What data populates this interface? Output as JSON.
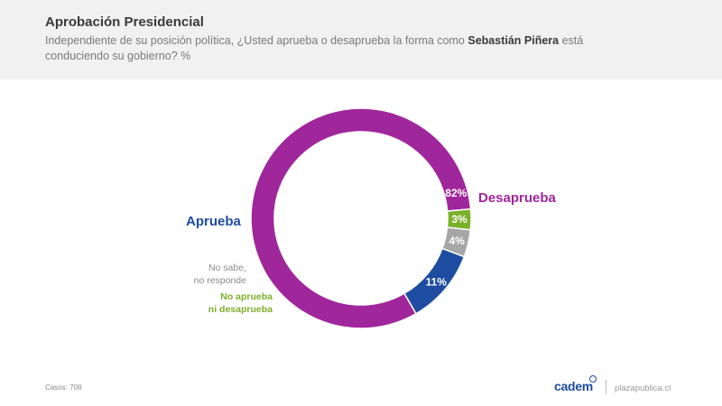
{
  "header": {
    "title": "Aprobación Presidencial",
    "subtitle_pre": "Independiente de su posición política, ¿Usted aprueba o desaprueba la forma como ",
    "subtitle_name": "Sebastián Piñera",
    "subtitle_post": " está conduciendo su gobierno? %"
  },
  "chart_data": {
    "type": "pie",
    "variant": "donut",
    "title": "Aprobación Presidencial",
    "categories": [
      "Desaprueba",
      "No aprueba ni desaprueba",
      "No sabe, no responde",
      "Aprueba"
    ],
    "values": [
      82,
      3,
      4,
      11
    ],
    "value_labels": [
      "82%",
      "3%",
      "4%",
      "11%"
    ],
    "colors": [
      "#a0269c",
      "#7bb02a",
      "#a6a6a6",
      "#1e4ca0"
    ],
    "labels": {
      "desaprueba": "Desaprueba",
      "aprueba": "Aprueba",
      "no_sabe_line1": "No sabe,",
      "no_sabe_line2": "no responde",
      "ni_line1": "No aprueba",
      "ni_line2": "ni desaprueba"
    }
  },
  "footer": {
    "casos": "Casos: 708",
    "logo": "cadem",
    "site": "plazapublica.cl"
  }
}
